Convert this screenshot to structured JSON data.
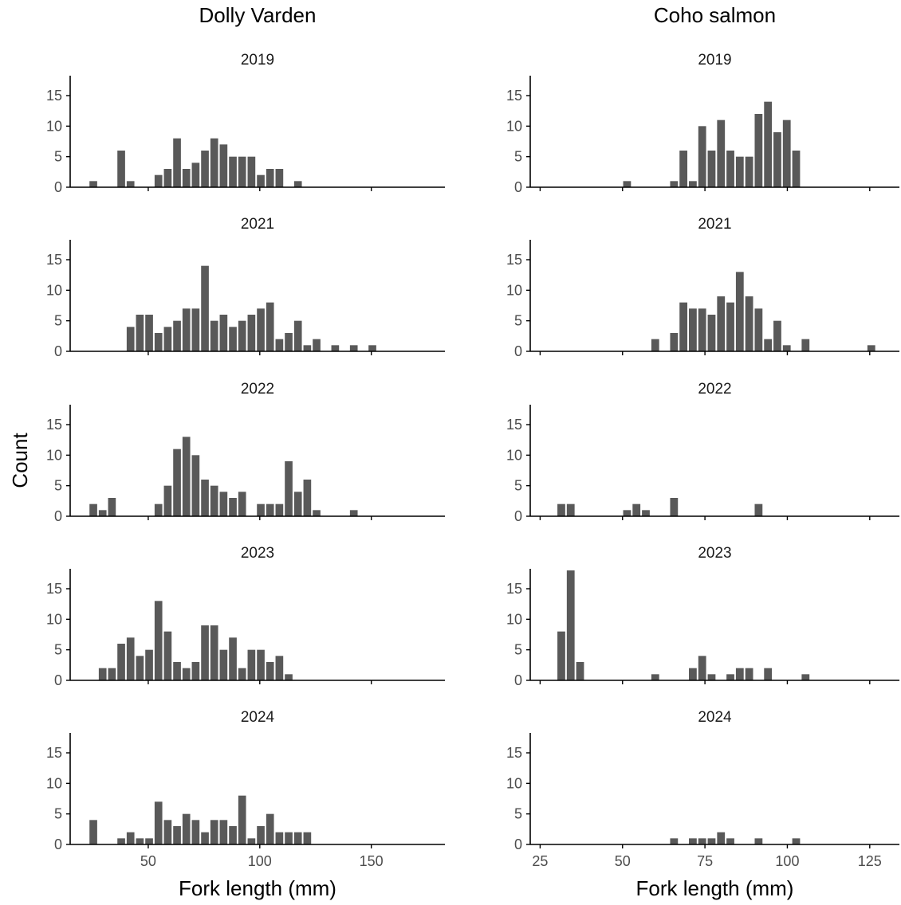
{
  "y_axis_label": "Count",
  "x_axis_label": "Fork length (mm)",
  "colors": {
    "bar": "#595959",
    "axis": "#000000",
    "tick_label": "#4d4d4d"
  },
  "chart_data": [
    {
      "type": "bar",
      "species": "Dolly Varden",
      "year": "2019",
      "xlabel": "Fork length (mm)",
      "ylabel": "Count",
      "xlim": [
        15,
        183
      ],
      "ylim": [
        0,
        18
      ],
      "xticks": [
        50,
        100,
        150
      ],
      "yticks": [
        0,
        5,
        10,
        15
      ],
      "bin_width": 4.17,
      "bin_start": 23.3,
      "values": [
        1,
        0,
        0,
        6,
        1,
        0,
        0,
        2,
        3,
        8,
        3,
        4,
        6,
        8,
        7,
        5,
        5,
        5,
        2,
        3,
        3,
        0,
        1,
        0,
        0,
        0,
        0,
        0,
        0,
        0,
        0,
        0,
        0,
        0,
        0,
        0,
        0
      ]
    },
    {
      "type": "bar",
      "species": "Coho salmon",
      "year": "2019",
      "xlabel": "Fork length (mm)",
      "ylabel": "Count",
      "xlim": [
        22,
        134
      ],
      "ylim": [
        0,
        18
      ],
      "xticks": [
        25,
        50,
        75,
        100,
        125
      ],
      "yticks": [
        0,
        5,
        10,
        15
      ],
      "bin_width": 2.85,
      "bin_start": 30.0,
      "values": [
        0,
        0,
        0,
        0,
        0,
        0,
        0,
        1,
        0,
        0,
        0,
        0,
        1,
        6,
        1,
        10,
        6,
        11,
        6,
        5,
        5,
        12,
        14,
        9,
        11,
        6,
        0,
        0,
        0,
        0,
        0,
        0,
        0,
        0,
        0,
        0,
        0
      ]
    },
    {
      "type": "bar",
      "species": "Dolly Varden",
      "year": "2021",
      "xlabel": "Fork length (mm)",
      "ylabel": "Count",
      "xlim": [
        15,
        183
      ],
      "ylim": [
        0,
        18
      ],
      "xticks": [
        50,
        100,
        150
      ],
      "yticks": [
        0,
        5,
        10,
        15
      ],
      "bin_width": 4.17,
      "bin_start": 23.3,
      "values": [
        0,
        0,
        0,
        0,
        4,
        6,
        6,
        3,
        4,
        5,
        7,
        7,
        14,
        5,
        6,
        4,
        5,
        6,
        7,
        8,
        2,
        3,
        5,
        1,
        2,
        0,
        1,
        0,
        1,
        0,
        1
      ]
    },
    {
      "type": "bar",
      "species": "Coho salmon",
      "year": "2021",
      "xlabel": "Fork length (mm)",
      "ylabel": "Count",
      "xlim": [
        22,
        134
      ],
      "ylim": [
        0,
        18
      ],
      "xticks": [
        25,
        50,
        75,
        100,
        125
      ],
      "yticks": [
        0,
        5,
        10,
        15
      ],
      "bin_width": 2.85,
      "bin_start": 30.0,
      "values": [
        0,
        0,
        0,
        0,
        0,
        0,
        0,
        0,
        0,
        0,
        2,
        0,
        3,
        8,
        7,
        7,
        6,
        9,
        8,
        13,
        9,
        7,
        2,
        5,
        1,
        0,
        2,
        0,
        0,
        0,
        0,
        0,
        0,
        1
      ]
    },
    {
      "type": "bar",
      "species": "Dolly Varden",
      "year": "2022",
      "xlabel": "Fork length (mm)",
      "ylabel": "Count",
      "xlim": [
        15,
        183
      ],
      "ylim": [
        0,
        18
      ],
      "xticks": [
        50,
        100,
        150
      ],
      "yticks": [
        0,
        5,
        10,
        15
      ],
      "bin_width": 4.17,
      "bin_start": 23.3,
      "values": [
        2,
        1,
        3,
        0,
        0,
        0,
        0,
        2,
        5,
        11,
        13,
        10,
        6,
        5,
        4,
        3,
        4,
        0,
        2,
        2,
        2,
        9,
        4,
        6,
        1,
        0,
        0,
        0,
        1
      ]
    },
    {
      "type": "bar",
      "species": "Coho salmon",
      "year": "2022",
      "xlabel": "Fork length (mm)",
      "ylabel": "Count",
      "xlim": [
        22,
        134
      ],
      "ylim": [
        0,
        18
      ],
      "xticks": [
        25,
        50,
        75,
        100,
        125
      ],
      "yticks": [
        0,
        5,
        10,
        15
      ],
      "bin_width": 2.85,
      "bin_start": 30.0,
      "values": [
        2,
        2,
        0,
        0,
        0,
        0,
        0,
        1,
        2,
        1,
        0,
        0,
        3,
        0,
        0,
        0,
        0,
        0,
        0,
        0,
        0,
        2
      ]
    },
    {
      "type": "bar",
      "species": "Dolly Varden",
      "year": "2023",
      "xlabel": "Fork length (mm)",
      "ylabel": "Count",
      "xlim": [
        15,
        183
      ],
      "ylim": [
        0,
        18
      ],
      "xticks": [
        50,
        100,
        150
      ],
      "yticks": [
        0,
        5,
        10,
        15
      ],
      "bin_width": 4.17,
      "bin_start": 23.3,
      "values": [
        0,
        2,
        2,
        6,
        7,
        4,
        5,
        13,
        8,
        3,
        2,
        3,
        9,
        9,
        5,
        7,
        2,
        5,
        5,
        3,
        4,
        1
      ]
    },
    {
      "type": "bar",
      "species": "Coho salmon",
      "year": "2023",
      "xlabel": "Fork length (mm)",
      "ylabel": "Count",
      "xlim": [
        22,
        134
      ],
      "ylim": [
        0,
        18
      ],
      "xticks": [
        25,
        50,
        75,
        100,
        125
      ],
      "yticks": [
        0,
        5,
        10,
        15
      ],
      "bin_width": 2.85,
      "bin_start": 30.0,
      "values": [
        8,
        18,
        3,
        0,
        0,
        0,
        0,
        0,
        0,
        0,
        1,
        0,
        0,
        0,
        2,
        4,
        1,
        0,
        1,
        2,
        2,
        0,
        2,
        0,
        0,
        0,
        1
      ]
    },
    {
      "type": "bar",
      "species": "Dolly Varden",
      "year": "2024",
      "xlabel": "Fork length (mm)",
      "ylabel": "Count",
      "xlim": [
        15,
        183
      ],
      "ylim": [
        0,
        18
      ],
      "xticks": [
        50,
        100,
        150
      ],
      "yticks": [
        0,
        5,
        10,
        15
      ],
      "bin_width": 4.17,
      "bin_start": 23.3,
      "values": [
        4,
        0,
        0,
        1,
        2,
        1,
        1,
        7,
        4,
        3,
        5,
        4,
        2,
        4,
        4,
        3,
        8,
        1,
        3,
        5,
        2,
        2,
        2,
        2
      ]
    },
    {
      "type": "bar",
      "species": "Coho salmon",
      "year": "2024",
      "xlabel": "Fork length (mm)",
      "ylabel": "Count",
      "xlim": [
        22,
        134
      ],
      "ylim": [
        0,
        18
      ],
      "xticks": [
        25,
        50,
        75,
        100,
        125
      ],
      "yticks": [
        0,
        5,
        10,
        15
      ],
      "bin_width": 2.85,
      "bin_start": 30.0,
      "values": [
        0,
        0,
        0,
        0,
        0,
        0,
        0,
        0,
        0,
        0,
        0,
        0,
        1,
        0,
        1,
        1,
        1,
        2,
        1,
        0,
        0,
        1,
        0,
        0,
        0,
        1
      ]
    }
  ]
}
